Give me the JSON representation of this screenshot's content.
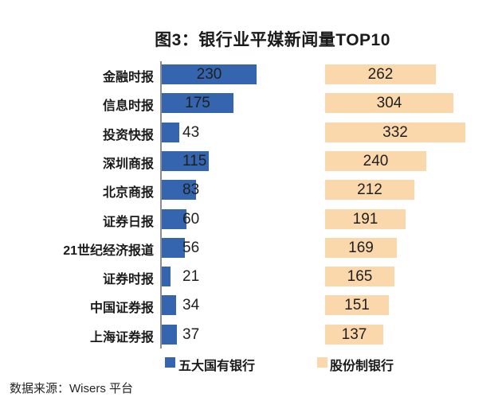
{
  "title": "图3：银行业平媒新闻量TOP10",
  "source": "数据来源：Wisers 平台",
  "colors": {
    "state_bank_blue": "#3565AE",
    "joint_stock_orange": "#FBD7AC",
    "axis_gray": "#8C8C8C",
    "text": "#1A1A1A"
  },
  "chart_data": {
    "type": "bar",
    "orientation": "horizontal",
    "title": "图3：银行业平媒新闻量TOP10",
    "categories": [
      "金融时报",
      "信息时报",
      "投资快报",
      "深圳商报",
      "北京商报",
      "证券日报",
      "21世纪经济报道",
      "证券时报",
      "中国证券报",
      "上海证券报"
    ],
    "series": [
      {
        "name": "五大国有银行",
        "color": "#3565AE",
        "values": [
          230,
          175,
          43,
          115,
          83,
          60,
          56,
          21,
          34,
          37
        ]
      },
      {
        "name": "股份制银行",
        "color": "#FBD7AC",
        "values": [
          262,
          304,
          332,
          240,
          212,
          191,
          169,
          165,
          151,
          137
        ]
      }
    ],
    "value_labels": true,
    "legend_position": "bottom",
    "grid": false,
    "source_note": "数据来源：Wisers 平台"
  }
}
